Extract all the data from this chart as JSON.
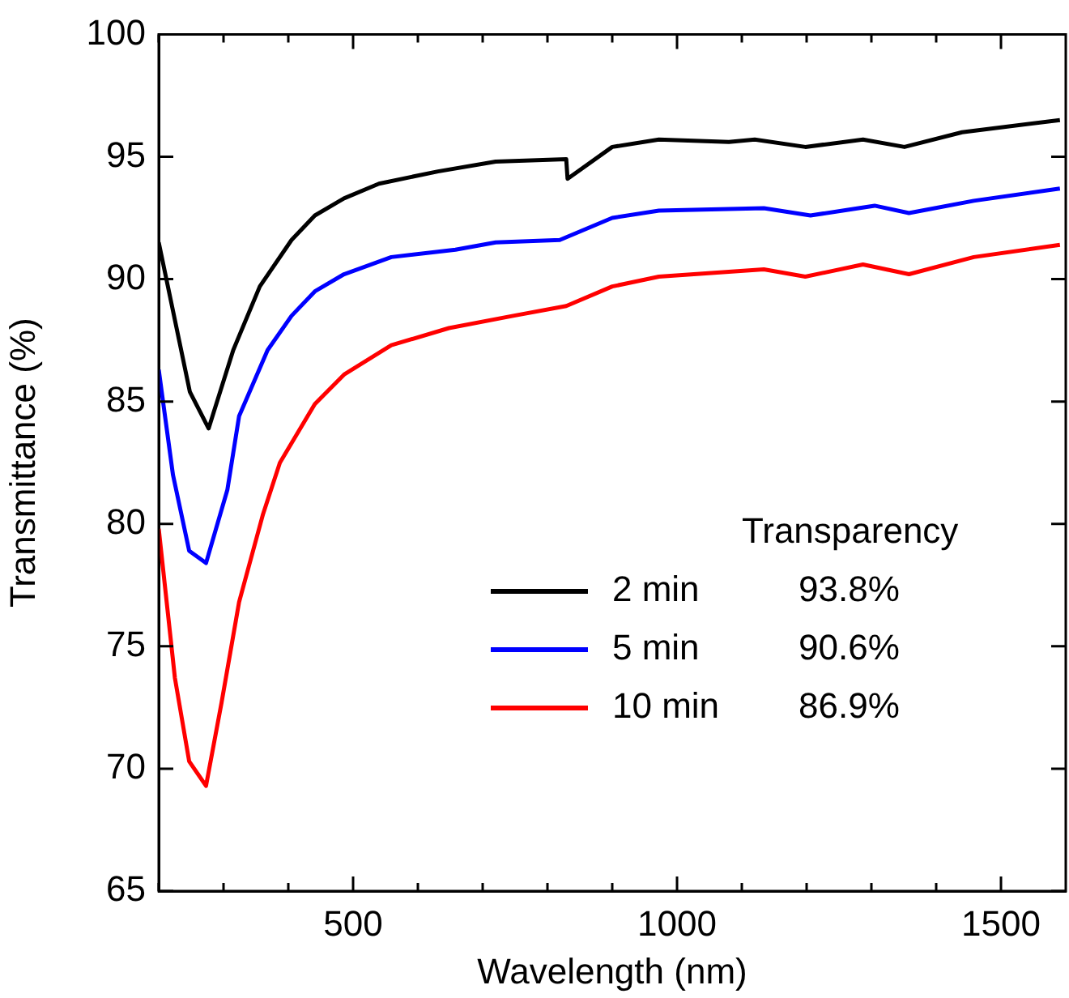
{
  "chart_data": {
    "type": "line",
    "xlabel": "Wavelength (nm)",
    "ylabel": "Transmittance (%)",
    "legend_title": "Transparency",
    "legend": "bottom right",
    "marker": "none",
    "line_style": "solid",
    "grid": false,
    "xlim": [
      200,
      1600
    ],
    "xticks": [
      {
        "value": 200,
        "label": null
      },
      {
        "value": 300,
        "label": null
      },
      {
        "value": 400,
        "label": null
      },
      500,
      {
        "value": 600,
        "label": null
      },
      {
        "value": 700,
        "label": null
      },
      {
        "value": 800,
        "label": null
      },
      {
        "value": 900,
        "label": null
      },
      1000,
      {
        "value": 1100,
        "label": null
      },
      {
        "value": 1200,
        "label": null
      },
      {
        "value": 1300,
        "label": null
      },
      {
        "value": 1400,
        "label": null
      },
      1500
    ],
    "ylim": [
      65,
      100
    ],
    "yticks": [
      65,
      70,
      75,
      80,
      85,
      90,
      95,
      100
    ],
    "annotations": [
      "93.8%",
      "90.6%",
      "86.9%"
    ],
    "series": [
      {
        "name": "2 min",
        "color": "#000000",
        "x": [
          200,
          248,
          277,
          315,
          356,
          405,
          441,
          486,
          540,
          631,
          720,
          829,
          831,
          900,
          972,
          1080,
          1120,
          1198,
          1287,
          1351,
          1440,
          1591
        ],
        "values": [
          91.5,
          85.4,
          83.9,
          87.1,
          89.7,
          91.6,
          92.6,
          93.3,
          93.9,
          94.4,
          94.8,
          94.9,
          94.1,
          95.4,
          95.7,
          95.6,
          95.7,
          95.4,
          95.7,
          95.4,
          96.0,
          96.5
        ]
      },
      {
        "name": "5 min",
        "color": "#0000ff",
        "x": [
          200,
          222,
          247,
          273,
          306,
          324,
          368,
          405,
          441,
          486,
          559,
          658,
          720,
          819,
          900,
          972,
          1134,
          1206,
          1305,
          1358,
          1458,
          1591
        ],
        "values": [
          86.3,
          82.0,
          78.9,
          78.4,
          81.4,
          84.4,
          87.1,
          88.5,
          89.5,
          90.2,
          90.9,
          91.2,
          91.5,
          91.6,
          92.5,
          92.8,
          92.9,
          92.6,
          93.0,
          92.7,
          93.2,
          93.7
        ]
      },
      {
        "name": "10 min",
        "color": "#ff0000",
        "x": [
          200,
          225,
          247,
          273,
          297,
          324,
          361,
          387,
          441,
          486,
          559,
          648,
          747,
          829,
          900,
          972,
          1134,
          1198,
          1287,
          1358,
          1458,
          1591
        ],
        "values": [
          79.8,
          73.7,
          70.3,
          69.3,
          72.7,
          76.8,
          80.4,
          82.5,
          84.9,
          86.1,
          87.3,
          88.0,
          88.5,
          88.9,
          89.7,
          90.1,
          90.4,
          90.1,
          90.6,
          90.2,
          90.9,
          91.4
        ]
      }
    ]
  }
}
